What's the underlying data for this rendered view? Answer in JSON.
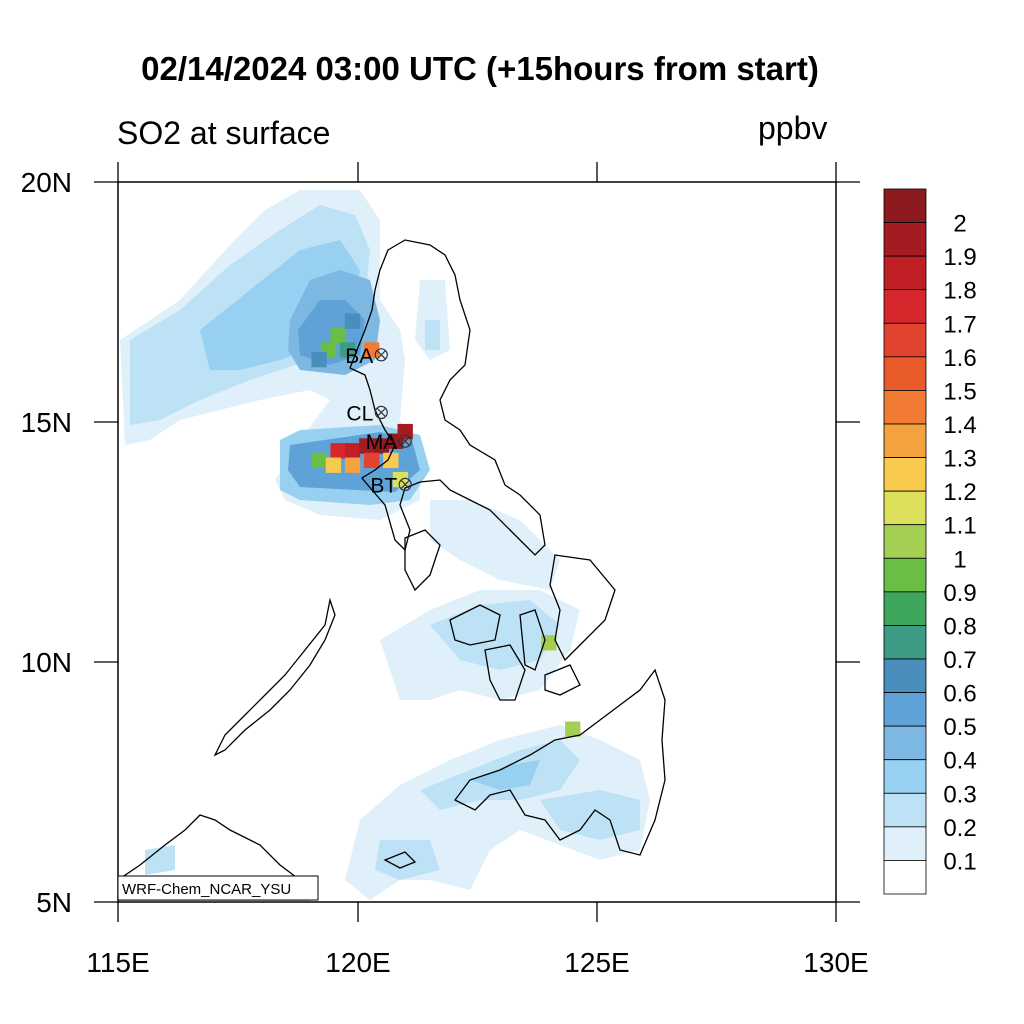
{
  "title": "02/14/2024 03:00 UTC (+15hours from start)",
  "left_title": "SO2 at surface",
  "right_title": "ppbv",
  "model_label": "WRF-Chem_NCAR_YSU",
  "axes": {
    "lon_ticks": [
      "115E",
      "120E",
      "125E",
      "130E"
    ],
    "lat_ticks": [
      "20N",
      "15N",
      "10N",
      "5N"
    ],
    "lon_range": [
      115,
      130
    ],
    "lat_range": [
      5,
      20
    ]
  },
  "colorbar": {
    "labels": [
      "2",
      "1.9",
      "1.8",
      "1.7",
      "1.6",
      "1.5",
      "1.4",
      "1.3",
      "1.2",
      "1.1",
      "1",
      "0.9",
      "0.8",
      "0.7",
      "0.6",
      "0.5",
      "0.4",
      "0.3",
      "0.2",
      "0.1"
    ],
    "colors_top_to_bottom": [
      "#8d1a1e",
      "#a51b22",
      "#c11f26",
      "#d6282c",
      "#e2432f",
      "#ea5b2c",
      "#f17b32",
      "#f4a23f",
      "#f8ca4e",
      "#dde05a",
      "#a5cf52",
      "#6abd45",
      "#3fa75c",
      "#3e9b86",
      "#4a8ebd",
      "#5ea2d8",
      "#7db8e3",
      "#98d0f1",
      "#bde1f5",
      "#dff0fb",
      "#ffffff"
    ]
  },
  "stations": [
    {
      "label": "BA",
      "lon": 120.5,
      "lat": 16.4
    },
    {
      "label": "CL",
      "lon": 120.5,
      "lat": 15.2
    },
    {
      "label": "MA",
      "lon": 121.0,
      "lat": 14.6
    },
    {
      "label": "BT",
      "lon": 121.0,
      "lat": 13.7
    }
  ],
  "so2_cells": [
    {
      "lon": 119.6,
      "lat": 16.8,
      "v": 0.9
    },
    {
      "lon": 119.4,
      "lat": 16.5,
      "v": 0.9
    },
    {
      "lon": 119.8,
      "lat": 16.5,
      "v": 0.7
    },
    {
      "lon": 119.2,
      "lat": 16.3,
      "v": 0.6
    },
    {
      "lon": 119.9,
      "lat": 17.1,
      "v": 0.6
    },
    {
      "lon": 120.3,
      "lat": 16.5,
      "v": 1.4
    },
    {
      "lon": 119.6,
      "lat": 14.4,
      "v": 1.7
    },
    {
      "lon": 119.9,
      "lat": 14.4,
      "v": 1.8
    },
    {
      "lon": 120.2,
      "lat": 14.5,
      "v": 1.9
    },
    {
      "lon": 120.5,
      "lat": 14.5,
      "v": 2.0
    },
    {
      "lon": 120.8,
      "lat": 14.6,
      "v": 2.0
    },
    {
      "lon": 121.0,
      "lat": 14.8,
      "v": 1.9
    },
    {
      "lon": 119.2,
      "lat": 14.2,
      "v": 0.9
    },
    {
      "lon": 119.5,
      "lat": 14.1,
      "v": 1.2
    },
    {
      "lon": 119.9,
      "lat": 14.1,
      "v": 1.3
    },
    {
      "lon": 120.3,
      "lat": 14.2,
      "v": 1.6
    },
    {
      "lon": 120.7,
      "lat": 14.2,
      "v": 1.2
    },
    {
      "lon": 120.9,
      "lat": 13.8,
      "v": 1.1
    },
    {
      "lon": 124.0,
      "lat": 10.4,
      "v": 1.0
    },
    {
      "lon": 124.5,
      "lat": 8.6,
      "v": 1.0
    }
  ]
}
